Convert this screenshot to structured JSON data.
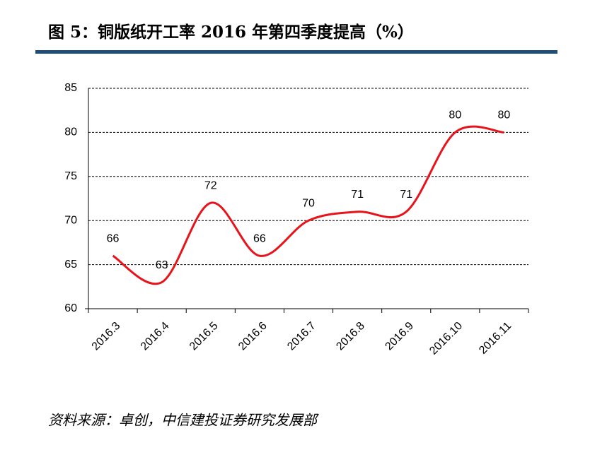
{
  "chart_data": {
    "type": "line",
    "title": "图 5：铜版纸开工率 2016 年第四季度提高（%）",
    "source": "资料来源：卓创，中信建投证券研究发展部",
    "categories": [
      "2016.3",
      "2016.4",
      "2016.5",
      "2016.6",
      "2016.7",
      "2016.8",
      "2016.9",
      "2016.10",
      "2016.11"
    ],
    "series": [
      {
        "name": "铜版纸开工率",
        "color": "#e8141c",
        "values": [
          66,
          63,
          72,
          66,
          70,
          71,
          71,
          80,
          80
        ]
      }
    ],
    "ylim": [
      60,
      85
    ],
    "yticks": [
      60,
      65,
      70,
      75,
      80,
      85
    ],
    "grid": true
  }
}
